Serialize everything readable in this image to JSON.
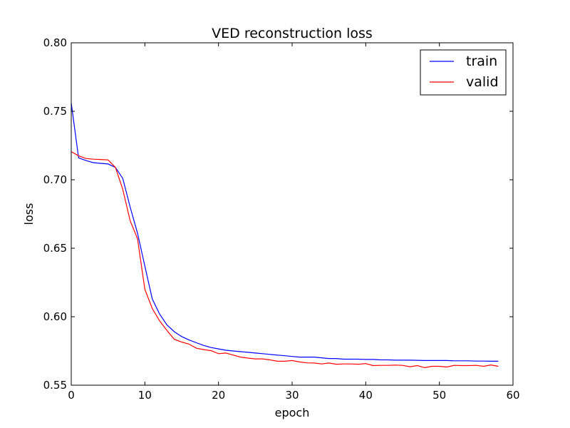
{
  "chart_data": {
    "type": "line",
    "title": "VED reconstruction loss",
    "xlabel": "epoch",
    "ylabel": "loss",
    "xlim": [
      0,
      60
    ],
    "ylim": [
      0.55,
      0.8
    ],
    "xticks": [
      0,
      10,
      20,
      30,
      40,
      50,
      60
    ],
    "yticks": [
      0.55,
      0.6,
      0.65,
      0.7,
      0.75,
      0.8
    ],
    "grid": false,
    "legend_position": "top-right",
    "series": [
      {
        "name": "train",
        "color": "#0000ff",
        "x": [
          0,
          1,
          2,
          3,
          4,
          5,
          6,
          7,
          8,
          9,
          10,
          11,
          12,
          13,
          14,
          15,
          16,
          17,
          18,
          19,
          20,
          21,
          22,
          23,
          24,
          25,
          26,
          27,
          28,
          29,
          30,
          31,
          32,
          33,
          34,
          35,
          36,
          37,
          38,
          39,
          40,
          41,
          42,
          43,
          44,
          45,
          46,
          47,
          48,
          49,
          50,
          51,
          52,
          53,
          54,
          55,
          56,
          57,
          58
        ],
        "values": [
          0.756,
          0.716,
          0.714,
          0.7125,
          0.712,
          0.7115,
          0.709,
          0.701,
          0.68,
          0.661,
          0.637,
          0.613,
          0.602,
          0.594,
          0.589,
          0.5855,
          0.583,
          0.581,
          0.579,
          0.5775,
          0.5765,
          0.5755,
          0.575,
          0.5745,
          0.574,
          0.5735,
          0.573,
          0.5725,
          0.572,
          0.5715,
          0.571,
          0.5705,
          0.5705,
          0.5705,
          0.57,
          0.5695,
          0.5695,
          0.569,
          0.569,
          0.569,
          0.5688,
          0.5688,
          0.5685,
          0.5685,
          0.5683,
          0.5683,
          0.5683,
          0.5682,
          0.568,
          0.568,
          0.568,
          0.568,
          0.5678,
          0.5678,
          0.5678,
          0.5676,
          0.5676,
          0.5675,
          0.5675
        ]
      },
      {
        "name": "valid",
        "color": "#ff0000",
        "x": [
          0,
          1,
          2,
          3,
          4,
          5,
          6,
          7,
          8,
          9,
          10,
          11,
          12,
          13,
          14,
          15,
          16,
          17,
          18,
          19,
          20,
          21,
          22,
          23,
          24,
          25,
          26,
          27,
          28,
          29,
          30,
          31,
          32,
          33,
          34,
          35,
          36,
          37,
          38,
          39,
          40,
          41,
          42,
          43,
          44,
          45,
          46,
          47,
          48,
          49,
          50,
          51,
          52,
          53,
          54,
          55,
          56,
          57,
          58
        ],
        "values": [
          0.7205,
          0.7175,
          0.7155,
          0.715,
          0.7148,
          0.7145,
          0.709,
          0.693,
          0.67,
          0.657,
          0.62,
          0.606,
          0.597,
          0.59,
          0.5835,
          0.5815,
          0.58,
          0.577,
          0.576,
          0.5752,
          0.573,
          0.5735,
          0.572,
          0.5705,
          0.5698,
          0.5692,
          0.5692,
          0.5685,
          0.5675,
          0.5675,
          0.568,
          0.567,
          0.5663,
          0.5662,
          0.5655,
          0.5662,
          0.5653,
          0.5655,
          0.5655,
          0.5653,
          0.5658,
          0.5643,
          0.5645,
          0.5645,
          0.5647,
          0.5645,
          0.5635,
          0.5643,
          0.5628,
          0.5638,
          0.5638,
          0.5633,
          0.5645,
          0.5643,
          0.5643,
          0.5645,
          0.5638,
          0.5648,
          0.5638
        ]
      }
    ]
  }
}
